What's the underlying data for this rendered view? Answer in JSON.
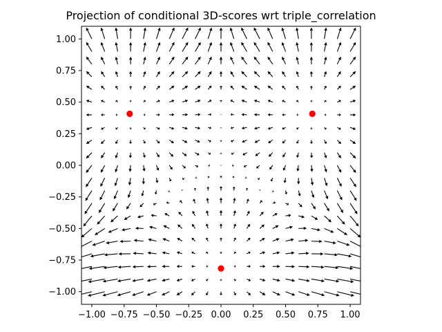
{
  "chart_data": {
    "type": "quiver",
    "title": "Projection of conditional 3D-scores wrt triple_correlation",
    "xlabel": "",
    "ylabel": "",
    "xlim": [
      -1.08,
      1.08
    ],
    "ylim": [
      -1.1,
      1.1
    ],
    "xticks": [
      -1.0,
      -0.75,
      -0.5,
      -0.25,
      0.0,
      0.25,
      0.5,
      0.75,
      1.0
    ],
    "xtick_labels": [
      "−1.00",
      "−0.75",
      "−0.50",
      "−0.25",
      "0.00",
      "0.25",
      "0.50",
      "0.75",
      "1.00"
    ],
    "yticks": [
      1.0,
      0.75,
      0.5,
      0.25,
      0.0,
      -0.25,
      -0.5,
      -0.75,
      -1.0
    ],
    "ytick_labels": [
      "1.00",
      "0.75",
      "0.50",
      "0.25",
      "0.00",
      "−0.25",
      "−0.50",
      "−0.75",
      "−1.00"
    ],
    "grid": false,
    "field": {
      "x_range": [
        -1.0,
        1.0
      ],
      "y_range": [
        -1.0,
        1.0
      ],
      "n": 21,
      "arrow_color": "#000000"
    },
    "points": [
      {
        "x": -0.707,
        "y": 0.408
      },
      {
        "x": 0.707,
        "y": 0.408
      },
      {
        "x": 0.0,
        "y": -0.816
      }
    ],
    "point_color": "#ff0000"
  }
}
